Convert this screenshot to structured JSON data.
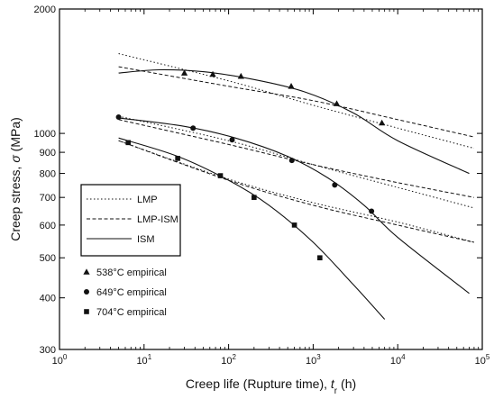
{
  "chart_data": {
    "type": "scatter",
    "title": "",
    "xlabel": "Creep life (Rupture time), ",
    "xlabel_symbol": "t",
    "xlabel_sub": "r",
    "xlabel_unit": " (h)",
    "ylabel": "Creep stress, ",
    "ylabel_symbol": "σ",
    "ylabel_unit": " (MPa)",
    "xscale": "log",
    "yscale": "log",
    "xlim": [
      1,
      100000
    ],
    "ylim": [
      300,
      2000
    ],
    "x_ticks": [
      {
        "value": 1,
        "base": "10",
        "exp": "0"
      },
      {
        "value": 10,
        "base": "10",
        "exp": "1"
      },
      {
        "value": 100,
        "base": "10",
        "exp": "2"
      },
      {
        "value": 1000,
        "base": "10",
        "exp": "3"
      },
      {
        "value": 10000,
        "base": "10",
        "exp": "4"
      },
      {
        "value": 100000,
        "base": "10",
        "exp": "5"
      }
    ],
    "y_ticks": [
      {
        "value": 2000,
        "label": "2000"
      },
      {
        "value": 1000,
        "label": "1000"
      },
      {
        "value": 900,
        "label": "900"
      },
      {
        "value": 800,
        "label": "800"
      },
      {
        "value": 700,
        "label": "700"
      },
      {
        "value": 600,
        "label": "600"
      },
      {
        "value": 500,
        "label": "500"
      },
      {
        "value": 400,
        "label": "400"
      },
      {
        "value": 300,
        "label": "300"
      }
    ],
    "legend_position": "lower-left",
    "legend_lines": [
      {
        "label": "LMP",
        "style": "dotted"
      },
      {
        "label": "LMP-ISM",
        "style": "dashed"
      },
      {
        "label": "ISM",
        "style": "solid"
      }
    ],
    "legend_markers": [
      {
        "label": "538°C empirical",
        "marker": "triangle"
      },
      {
        "label": "649°C empirical",
        "marker": "circle"
      },
      {
        "label": "704°C empirical",
        "marker": "square"
      }
    ],
    "series": [
      {
        "temperature": "538°C",
        "marker": "triangle",
        "points": [
          [
            30,
            1400
          ],
          [
            65,
            1390
          ],
          [
            140,
            1375
          ],
          [
            550,
            1300
          ],
          [
            1900,
            1180
          ],
          [
            6500,
            1060
          ]
        ],
        "LMP": [
          [
            5,
            1560
          ],
          [
            100,
            1340
          ],
          [
            1000,
            1170
          ],
          [
            10000,
            1030
          ],
          [
            80000,
            920
          ]
        ],
        "LMP_ISM": [
          [
            5,
            1450
          ],
          [
            100,
            1300
          ],
          [
            1000,
            1200
          ],
          [
            10000,
            1080
          ],
          [
            80000,
            980
          ]
        ],
        "ISM": [
          [
            5,
            1400
          ],
          [
            15,
            1425
          ],
          [
            50,
            1410
          ],
          [
            200,
            1350
          ],
          [
            800,
            1260
          ],
          [
            3000,
            1120
          ],
          [
            10000,
            960
          ],
          [
            70000,
            800
          ]
        ]
      },
      {
        "temperature": "649°C",
        "marker": "circle",
        "points": [
          [
            5,
            1095
          ],
          [
            38,
            1030
          ],
          [
            110,
            965
          ],
          [
            560,
            860
          ],
          [
            1800,
            750
          ],
          [
            4900,
            648
          ]
        ],
        "LMP": [
          [
            5,
            1100
          ],
          [
            100,
            960
          ],
          [
            1000,
            840
          ],
          [
            10000,
            740
          ],
          [
            80000,
            660
          ]
        ],
        "LMP_ISM": [
          [
            5,
            1080
          ],
          [
            100,
            940
          ],
          [
            1000,
            840
          ],
          [
            10000,
            760
          ],
          [
            80000,
            700
          ]
        ],
        "ISM": [
          [
            5,
            1090
          ],
          [
            30,
            1040
          ],
          [
            120,
            975
          ],
          [
            500,
            880
          ],
          [
            1500,
            780
          ],
          [
            4000,
            670
          ],
          [
            10000,
            560
          ],
          [
            70000,
            410
          ]
        ]
      },
      {
        "temperature": "704°C",
        "marker": "square",
        "points": [
          [
            6.5,
            950
          ],
          [
            25,
            870
          ],
          [
            80,
            790
          ],
          [
            200,
            700
          ],
          [
            600,
            600
          ],
          [
            1200,
            500
          ]
        ],
        "LMP": [
          [
            5,
            960
          ],
          [
            100,
            775
          ],
          [
            1000,
            680
          ],
          [
            10000,
            610
          ],
          [
            80000,
            545
          ]
        ],
        "LMP_ISM": [
          [
            5,
            960
          ],
          [
            100,
            770
          ],
          [
            1000,
            670
          ],
          [
            10000,
            600
          ],
          [
            80000,
            545
          ]
        ],
        "ISM": [
          [
            5,
            975
          ],
          [
            25,
            880
          ],
          [
            100,
            770
          ],
          [
            300,
            670
          ],
          [
            1000,
            545
          ],
          [
            3000,
            430
          ],
          [
            7000,
            355
          ]
        ]
      }
    ]
  }
}
